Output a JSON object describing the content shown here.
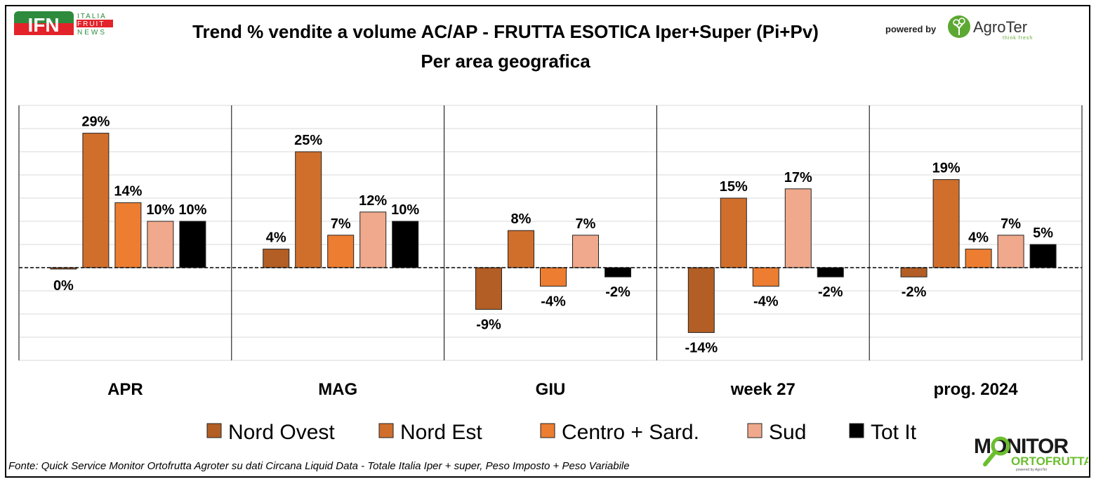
{
  "header": {
    "title_line1": "Trend % vendite a volume AC/AP - FRUTTA ESOTICA  Iper+Super (Pi+Pv)",
    "title_line2": "Per area geografica",
    "powered_by": "powered by",
    "ifn_logo": {
      "mark": "IFN",
      "line1": "ITALIA",
      "line2": "FRUIT",
      "line3": "NEWS"
    },
    "agroter_logo": {
      "name": "AgroTer",
      "tagline": "think fresh"
    }
  },
  "footer": {
    "source": "Fonte: Quick Service Monitor Ortofrutta Agroter su dati Circana Liquid Data - Totale Italia Iper + super, Peso Imposto + Peso Variabile",
    "monitor_logo": {
      "line1": "MONITOR",
      "line2": "ORTOFRUTTA",
      "tagline": "powered by AgroTer"
    }
  },
  "chart_data": {
    "type": "bar",
    "title": "Trend % vendite a volume AC/AP - FRUTTA ESOTICA  Iper+Super (Pi+Pv) — Per area geografica",
    "xlabel": "",
    "ylabel": "",
    "categories": [
      "APR",
      "MAG",
      "GIU",
      "week 27",
      "prog. 2024"
    ],
    "ylim": [
      -20,
      35
    ],
    "grid": true,
    "legend_position": "bottom",
    "unit": "%",
    "series": [
      {
        "name": "Nord Ovest",
        "color": "#B35E24",
        "values": [
          0,
          4,
          -9,
          -14,
          -2
        ]
      },
      {
        "name": "Nord Est",
        "color": "#D06F2C",
        "values": [
          29,
          25,
          8,
          15,
          19
        ]
      },
      {
        "name": "Centro + Sard.",
        "color": "#ED7D31",
        "values": [
          14,
          7,
          -4,
          -4,
          4
        ]
      },
      {
        "name": "Sud",
        "color": "#F0A98C",
        "values": [
          10,
          12,
          7,
          17,
          7
        ]
      },
      {
        "name": "Tot It",
        "color": "#000000",
        "values": [
          10,
          10,
          -2,
          -2,
          5
        ]
      }
    ]
  }
}
